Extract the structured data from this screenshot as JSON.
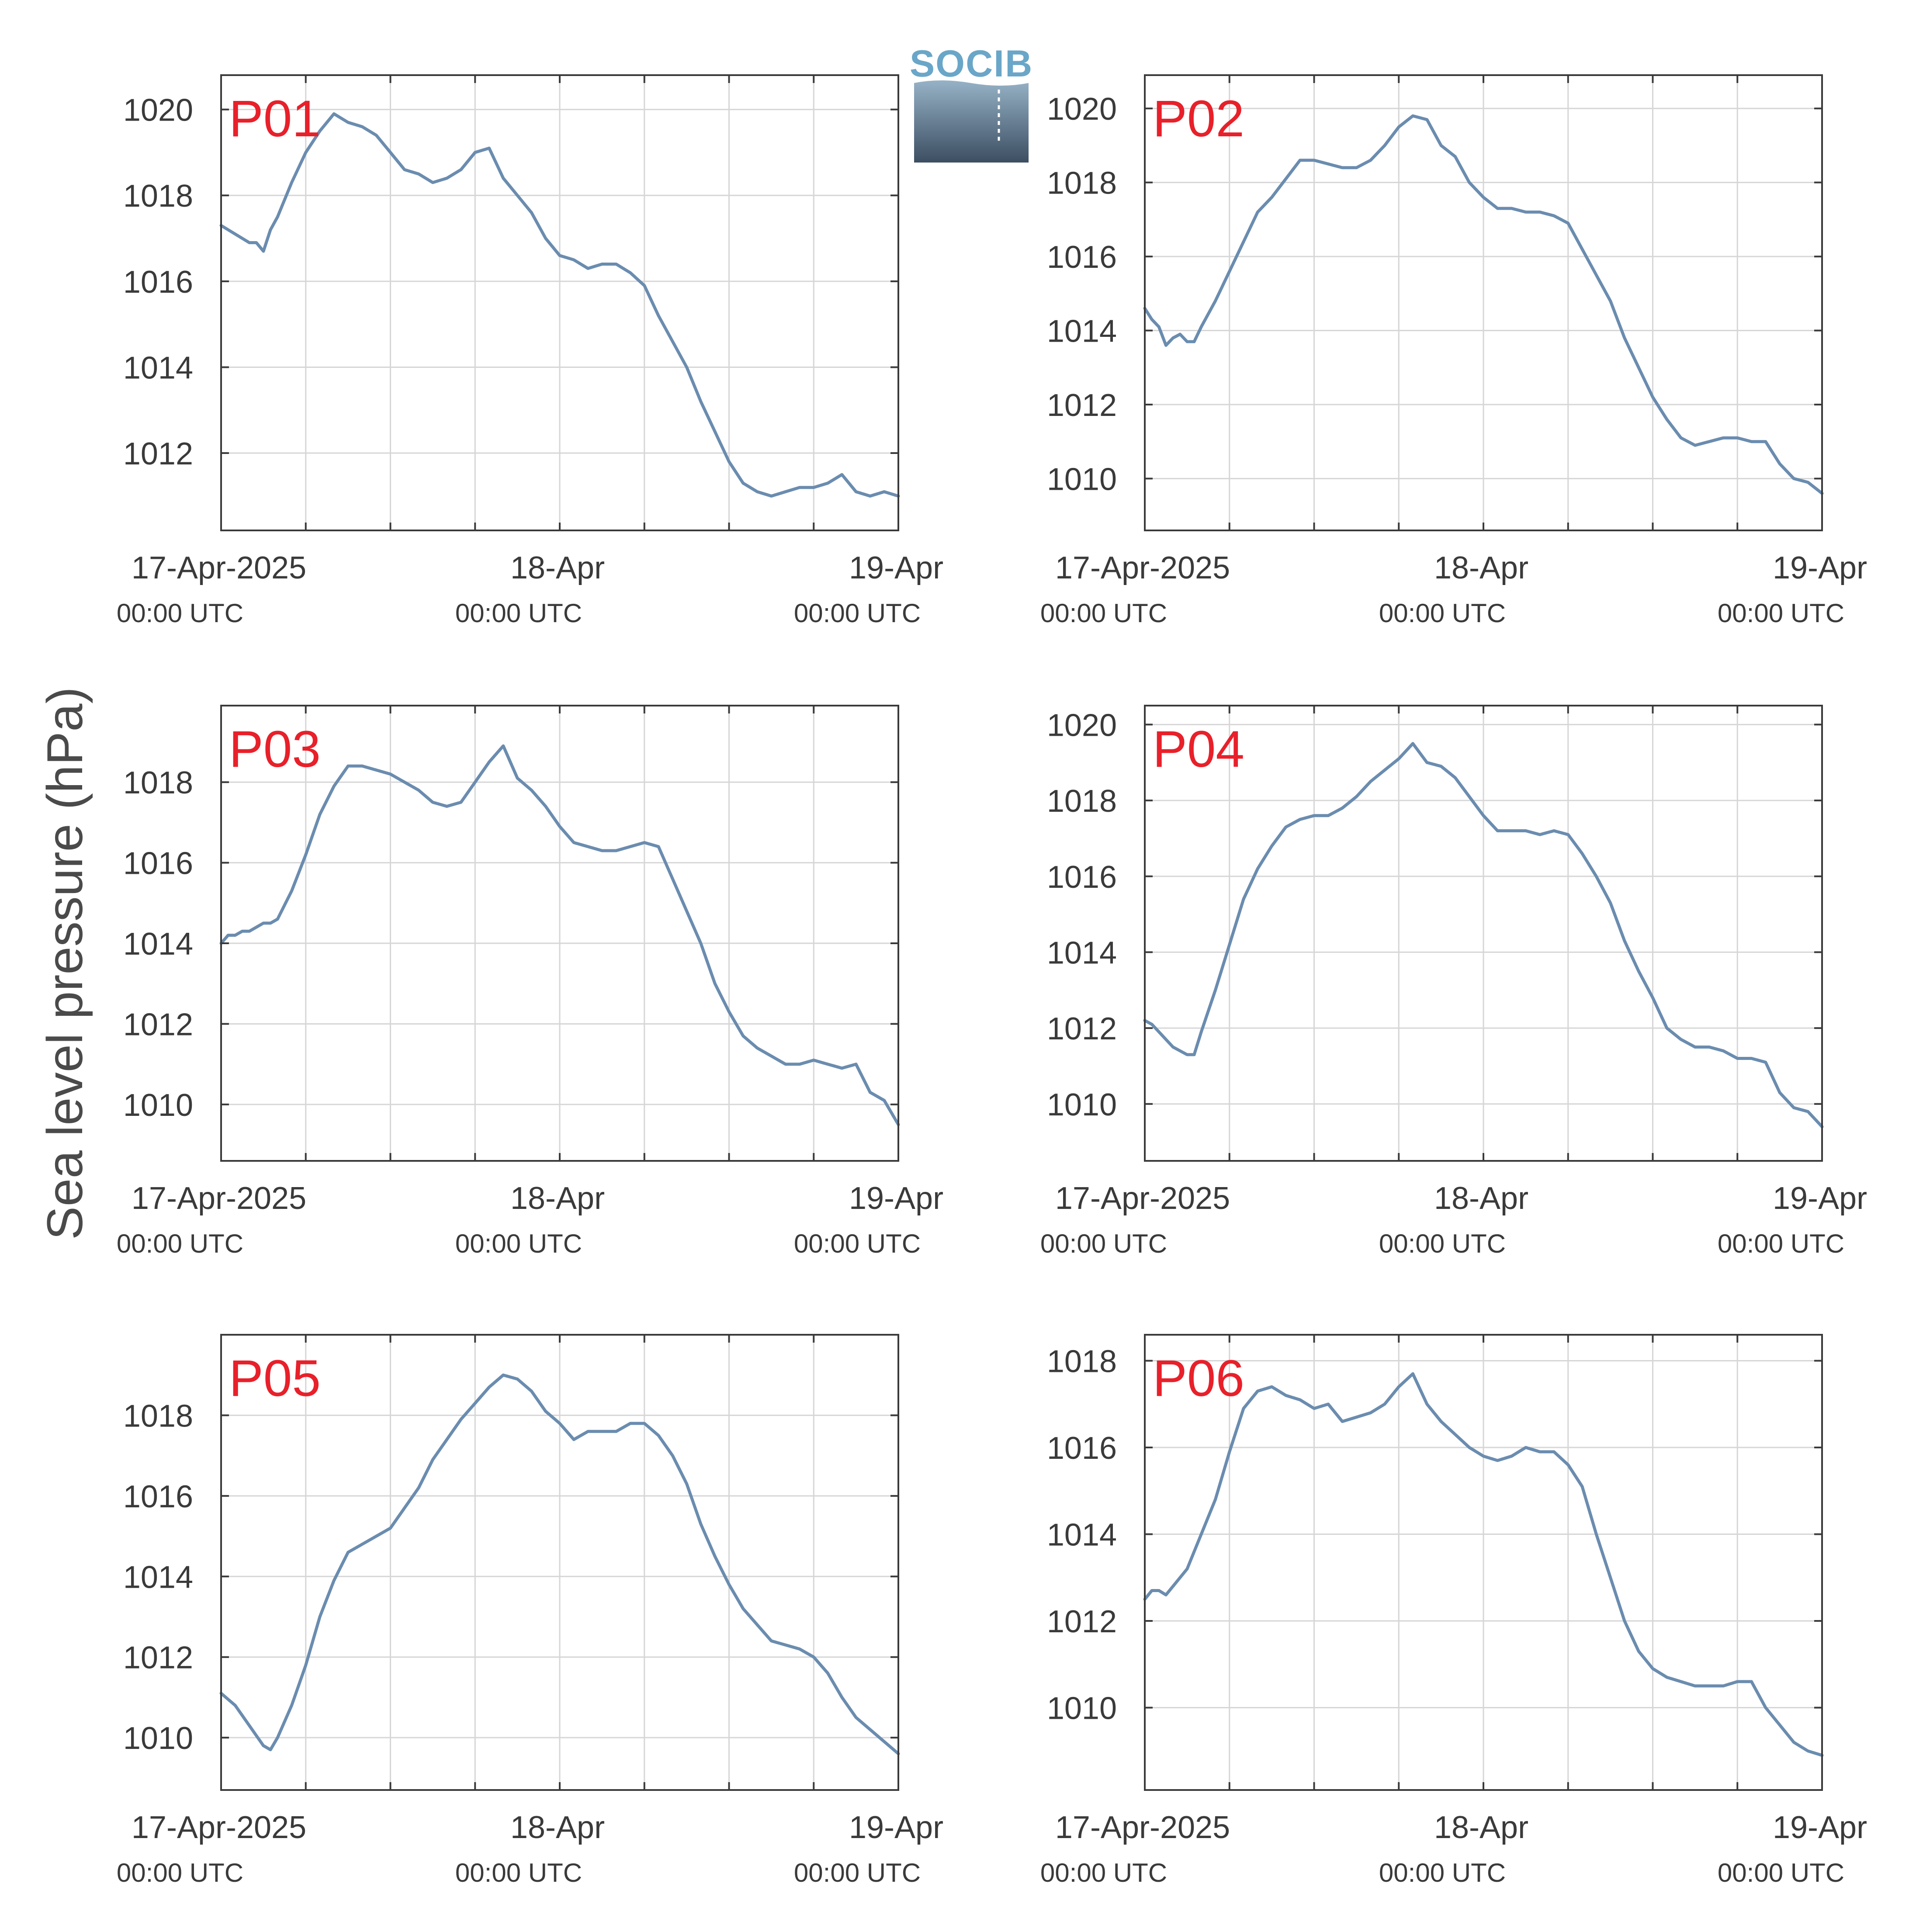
{
  "figure": {
    "ylabel": "Sea level pressure (hPa)",
    "logo_text": "SOCIB"
  },
  "colors": {
    "series_line": "#6a8caf",
    "panel_label": "#e8202a",
    "axis": "#3a3a3a",
    "grid": "#d6d6d6",
    "logo_top": "#6aa6c8",
    "logo_bottom": "#3c4e62"
  },
  "x_axis": {
    "tick_labels": [
      {
        "date": "17-Apr-2025",
        "time": "00:00 UTC"
      },
      {
        "date": "18-Apr",
        "time": "00:00 UTC"
      },
      {
        "date": "19-Apr",
        "time": "00:00 UTC"
      }
    ]
  },
  "chart_data": [
    {
      "type": "line",
      "label": "P01",
      "x_unit": "hours since 17-Apr-2025 00:00 UTC",
      "xlim": [
        0,
        48
      ],
      "ylim": [
        1010.2,
        1020.8
      ],
      "yticks": [
        1012,
        1014,
        1016,
        1018,
        1020
      ],
      "grid": true,
      "x": [
        0,
        1,
        2,
        2.5,
        3,
        3.5,
        4,
        5,
        6,
        7,
        8,
        9,
        10,
        11,
        12,
        13,
        14,
        15,
        16,
        17,
        18,
        19,
        20,
        21,
        22,
        23,
        24,
        25,
        26,
        27,
        28,
        29,
        30,
        31,
        32,
        33,
        34,
        35,
        36,
        37,
        38,
        39,
        40,
        41,
        42,
        43,
        44,
        45,
        46,
        47,
        48
      ],
      "y": [
        1017.3,
        1017.1,
        1016.9,
        1016.9,
        1016.7,
        1017.2,
        1017.5,
        1018.3,
        1019.0,
        1019.5,
        1019.9,
        1019.7,
        1019.6,
        1019.4,
        1019.0,
        1018.6,
        1018.5,
        1018.3,
        1018.4,
        1018.6,
        1019.0,
        1019.1,
        1018.4,
        1018.0,
        1017.6,
        1017.0,
        1016.6,
        1016.5,
        1016.3,
        1016.4,
        1016.4,
        1016.2,
        1015.9,
        1015.2,
        1014.6,
        1014.0,
        1013.2,
        1012.5,
        1011.8,
        1011.3,
        1011.1,
        1011.0,
        1011.1,
        1011.2,
        1011.2,
        1011.3,
        1011.5,
        1011.1,
        1011.0,
        1011.1,
        1011.0
      ]
    },
    {
      "type": "line",
      "label": "P02",
      "x_unit": "hours since 17-Apr-2025 00:00 UTC",
      "xlim": [
        0,
        48
      ],
      "ylim": [
        1008.6,
        1020.9
      ],
      "yticks": [
        1010,
        1012,
        1014,
        1016,
        1018,
        1020
      ],
      "grid": true,
      "x": [
        0,
        0.5,
        1,
        1.5,
        2,
        2.5,
        3,
        3.5,
        4,
        5,
        6,
        7,
        8,
        9,
        10,
        11,
        12,
        13,
        14,
        15,
        16,
        17,
        18,
        19,
        20,
        21,
        22,
        23,
        24,
        25,
        26,
        27,
        28,
        29,
        30,
        31,
        32,
        33,
        34,
        35,
        36,
        37,
        38,
        39,
        40,
        41,
        42,
        43,
        44,
        45,
        46,
        47,
        48
      ],
      "y": [
        1014.6,
        1014.3,
        1014.1,
        1013.6,
        1013.8,
        1013.9,
        1013.7,
        1013.7,
        1014.1,
        1014.8,
        1015.6,
        1016.4,
        1017.2,
        1017.6,
        1018.1,
        1018.6,
        1018.6,
        1018.5,
        1018.4,
        1018.4,
        1018.6,
        1019.0,
        1019.5,
        1019.8,
        1019.7,
        1019.0,
        1018.7,
        1018.0,
        1017.6,
        1017.3,
        1017.3,
        1017.2,
        1017.2,
        1017.1,
        1016.9,
        1016.2,
        1015.5,
        1014.8,
        1013.8,
        1013.0,
        1012.2,
        1011.6,
        1011.1,
        1010.9,
        1011.0,
        1011.1,
        1011.1,
        1011.0,
        1011.0,
        1010.4,
        1010.0,
        1009.9,
        1009.6
      ]
    },
    {
      "type": "line",
      "label": "P03",
      "x_unit": "hours since 17-Apr-2025 00:00 UTC",
      "xlim": [
        0,
        48
      ],
      "ylim": [
        1008.6,
        1019.9
      ],
      "yticks": [
        1010,
        1012,
        1014,
        1016,
        1018
      ],
      "grid": true,
      "x": [
        0,
        0.5,
        1,
        1.5,
        2,
        2.5,
        3,
        3.5,
        4,
        5,
        6,
        7,
        8,
        9,
        10,
        11,
        12,
        13,
        14,
        15,
        16,
        17,
        18,
        19,
        20,
        21,
        22,
        23,
        24,
        25,
        26,
        27,
        28,
        29,
        30,
        31,
        32,
        33,
        34,
        35,
        36,
        37,
        38,
        39,
        40,
        41,
        42,
        43,
        44,
        45,
        46,
        47,
        48
      ],
      "y": [
        1014.0,
        1014.2,
        1014.2,
        1014.3,
        1014.3,
        1014.4,
        1014.5,
        1014.5,
        1014.6,
        1015.3,
        1016.2,
        1017.2,
        1017.9,
        1018.4,
        1018.4,
        1018.3,
        1018.2,
        1018.0,
        1017.8,
        1017.5,
        1017.4,
        1017.5,
        1018.0,
        1018.5,
        1018.9,
        1018.1,
        1017.8,
        1017.4,
        1016.9,
        1016.5,
        1016.4,
        1016.3,
        1016.3,
        1016.4,
        1016.5,
        1016.4,
        1015.6,
        1014.8,
        1014.0,
        1013.0,
        1012.3,
        1011.7,
        1011.4,
        1011.2,
        1011.0,
        1011.0,
        1011.1,
        1011.0,
        1010.9,
        1011.0,
        1010.3,
        1010.1,
        1009.5
      ]
    },
    {
      "type": "line",
      "label": "P04",
      "x_unit": "hours since 17-Apr-2025 00:00 UTC",
      "xlim": [
        0,
        48
      ],
      "ylim": [
        1008.5,
        1020.5
      ],
      "yticks": [
        1010,
        1012,
        1014,
        1016,
        1018,
        1020
      ],
      "grid": true,
      "x": [
        0,
        0.5,
        1,
        1.5,
        2,
        2.5,
        3,
        3.5,
        4,
        5,
        6,
        7,
        8,
        9,
        10,
        11,
        12,
        13,
        14,
        15,
        16,
        17,
        18,
        19,
        20,
        21,
        22,
        23,
        24,
        25,
        26,
        27,
        28,
        29,
        30,
        31,
        32,
        33,
        34,
        35,
        36,
        37,
        38,
        39,
        40,
        41,
        42,
        43,
        44,
        45,
        46,
        47,
        48
      ],
      "y": [
        1012.2,
        1012.1,
        1011.9,
        1011.7,
        1011.5,
        1011.4,
        1011.3,
        1011.3,
        1011.9,
        1013.0,
        1014.2,
        1015.4,
        1016.2,
        1016.8,
        1017.3,
        1017.5,
        1017.6,
        1017.6,
        1017.8,
        1018.1,
        1018.5,
        1018.8,
        1019.1,
        1019.5,
        1019.0,
        1018.9,
        1018.6,
        1018.1,
        1017.6,
        1017.2,
        1017.2,
        1017.2,
        1017.1,
        1017.2,
        1017.1,
        1016.6,
        1016.0,
        1015.3,
        1014.3,
        1013.5,
        1012.8,
        1012.0,
        1011.7,
        1011.5,
        1011.5,
        1011.4,
        1011.2,
        1011.2,
        1011.1,
        1010.3,
        1009.9,
        1009.8,
        1009.4
      ]
    },
    {
      "type": "line",
      "label": "P05",
      "x_unit": "hours since 17-Apr-2025 00:00 UTC",
      "xlim": [
        0,
        48
      ],
      "ylim": [
        1008.7,
        1020.0
      ],
      "yticks": [
        1010,
        1012,
        1014,
        1016,
        1018
      ],
      "grid": true,
      "x": [
        0,
        1,
        2,
        3,
        3.5,
        4,
        5,
        6,
        7,
        8,
        9,
        10,
        11,
        12,
        13,
        14,
        15,
        16,
        17,
        18,
        19,
        20,
        21,
        22,
        23,
        24,
        25,
        26,
        27,
        28,
        29,
        30,
        31,
        32,
        33,
        34,
        35,
        36,
        37,
        38,
        39,
        40,
        41,
        42,
        43,
        44,
        45,
        46,
        47,
        48
      ],
      "y": [
        1011.1,
        1010.8,
        1010.3,
        1009.8,
        1009.7,
        1010.0,
        1010.8,
        1011.8,
        1013.0,
        1013.9,
        1014.6,
        1014.8,
        1015.0,
        1015.2,
        1015.7,
        1016.2,
        1016.9,
        1017.4,
        1017.9,
        1018.3,
        1018.7,
        1019.0,
        1018.9,
        1018.6,
        1018.1,
        1017.8,
        1017.4,
        1017.6,
        1017.6,
        1017.6,
        1017.8,
        1017.8,
        1017.5,
        1017.0,
        1016.3,
        1015.3,
        1014.5,
        1013.8,
        1013.2,
        1012.8,
        1012.4,
        1012.3,
        1012.2,
        1012.0,
        1011.6,
        1011.0,
        1010.5,
        1010.2,
        1009.9,
        1009.6
      ]
    },
    {
      "type": "line",
      "label": "P06",
      "x_unit": "hours since 17-Apr-2025 00:00 UTC",
      "xlim": [
        0,
        48
      ],
      "ylim": [
        1008.1,
        1018.6
      ],
      "yticks": [
        1010,
        1012,
        1014,
        1016,
        1018
      ],
      "grid": true,
      "x": [
        0,
        0.5,
        1,
        1.5,
        2,
        3,
        4,
        5,
        6,
        7,
        8,
        9,
        10,
        11,
        12,
        13,
        14,
        15,
        16,
        17,
        18,
        19,
        20,
        21,
        22,
        23,
        24,
        25,
        26,
        27,
        28,
        29,
        30,
        31,
        32,
        33,
        34,
        35,
        36,
        37,
        38,
        39,
        40,
        41,
        42,
        43,
        44,
        45,
        46,
        47,
        48
      ],
      "y": [
        1012.5,
        1012.7,
        1012.7,
        1012.6,
        1012.8,
        1013.2,
        1014.0,
        1014.8,
        1015.9,
        1016.9,
        1017.3,
        1017.4,
        1017.2,
        1017.1,
        1016.9,
        1017.0,
        1016.6,
        1016.7,
        1016.8,
        1017.0,
        1017.4,
        1017.7,
        1017.0,
        1016.6,
        1016.3,
        1016.0,
        1015.8,
        1015.7,
        1015.8,
        1016.0,
        1015.9,
        1015.9,
        1015.6,
        1015.1,
        1014.0,
        1013.0,
        1012.0,
        1011.3,
        1010.9,
        1010.7,
        1010.6,
        1010.5,
        1010.5,
        1010.5,
        1010.6,
        1010.6,
        1010.0,
        1009.6,
        1009.2,
        1009.0,
        1008.9
      ]
    }
  ]
}
